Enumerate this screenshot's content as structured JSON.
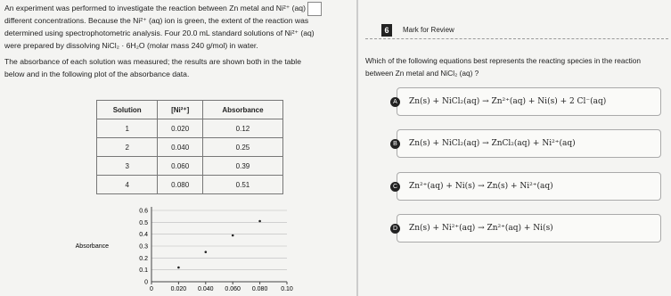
{
  "passage": {
    "paragraphs": [
      "An experiment was performed to investigate the reaction between Zn metal and Ni²⁺ (aq) at different concentrations. Because the Ni²⁺ (aq) ion is green, the extent of the reaction was determined using spectrophotometric analysis. Four 20.0 mL standard solutions of Ni²⁺ (aq) were prepared by dissolving NiCl₂ · 6H₂O (molar mass 240 g/mol) in water.",
      "The absorbance of each solution was measured; the results are shown both in the table below and in the following plot of the absorbance data."
    ]
  },
  "table": {
    "header": [
      "Solution",
      "[Ni²⁺]",
      "Absorbance"
    ],
    "rows": [
      [
        "1",
        "0.020",
        "0.12"
      ],
      [
        "2",
        "0.040",
        "0.25"
      ],
      [
        "3",
        "0.060",
        "0.39"
      ],
      [
        "4",
        "0.080",
        "0.51"
      ]
    ]
  },
  "plot": {
    "ylabel": "Absorbance",
    "x": [
      0.02,
      0.04,
      0.06,
      0.08
    ],
    "values": [
      0.12,
      0.25,
      0.39,
      0.51
    ],
    "xlim": [
      0,
      0.1
    ],
    "ylim": [
      0,
      0.6
    ],
    "xticks": [
      0,
      {
        "value": 0.02,
        "label": "0.020"
      },
      {
        "value": 0.04,
        "label": "0.040"
      },
      {
        "value": 0.06,
        "label": "0.060"
      },
      {
        "value": 0.08,
        "label": "0.080"
      },
      {
        "value": 0.1,
        "label": "0.10"
      }
    ],
    "yticks": [
      0,
      0.1,
      0.2,
      0.3,
      0.4,
      0.5,
      0.6
    ]
  },
  "question": {
    "number": "6",
    "mark_label": "Mark for Review",
    "text": "Which of the following equations best represents the reacting species in the reaction between Zn metal and NiCl₂ (aq) ?",
    "options": [
      {
        "letter": "A",
        "text": "Zn(s) + NiCl₂(aq) → Zn²⁺(aq) + Ni(s) + 2 Cl⁻(aq)"
      },
      {
        "letter": "B",
        "text": "Zn(s) + NiCl₂(aq) → ZnCl₂(aq) + Ni²⁺(aq)"
      },
      {
        "letter": "C",
        "text": "Zn²⁺(aq) + Ni(s) → Zn(s) + Ni²⁺(aq)"
      },
      {
        "letter": "D",
        "text": "Zn(s) + Ni²⁺(aq) → Zn²⁺(aq) + Ni(s)"
      }
    ]
  }
}
